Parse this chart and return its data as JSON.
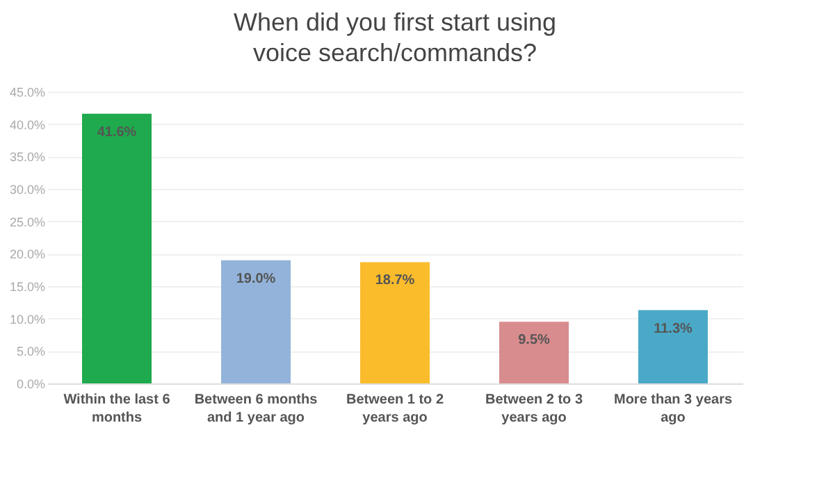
{
  "chart_data": {
    "type": "bar",
    "title": "When did you first start using voice search/commands?",
    "categories": [
      "Within the last 6 months",
      "Between 6 months and 1 year ago",
      "Between 1 to 2 years ago",
      "Between 2 to 3 years ago",
      "More than 3 years ago"
    ],
    "values": [
      41.6,
      19.0,
      18.7,
      9.5,
      11.3
    ],
    "colors": [
      "#1faa4d",
      "#93b3da",
      "#fbbc2c",
      "#d98c8e",
      "#4ba9c8"
    ],
    "value_labels": [
      "41.6%",
      "19.0%",
      "18.7%",
      "9.5%",
      "11.3%"
    ],
    "ylim": [
      0,
      45
    ],
    "yticks": [
      {
        "value": 0,
        "label": "0.0%"
      },
      {
        "value": 5,
        "label": "5.0%"
      },
      {
        "value": 10,
        "label": "10.0%"
      },
      {
        "value": 15,
        "label": "15.0%"
      },
      {
        "value": 20,
        "label": "20.0%"
      },
      {
        "value": 25,
        "label": "25.0%"
      },
      {
        "value": 30,
        "label": "30.0%"
      },
      {
        "value": 35,
        "label": "35.0%"
      },
      {
        "value": 40,
        "label": "40.0%"
      },
      {
        "value": 45,
        "label": "45.0%"
      }
    ],
    "grid": true
  }
}
